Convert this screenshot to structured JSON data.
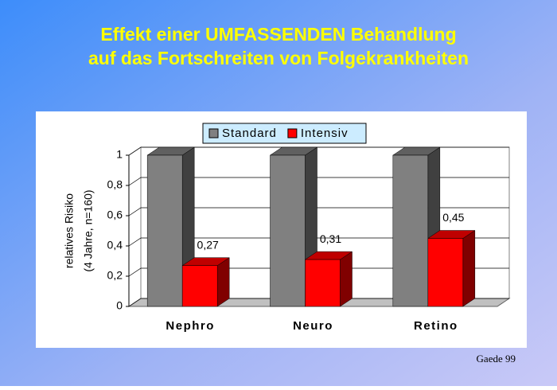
{
  "title_lines": [
    "Effekt einer UMFASSENDEN Behandlung",
    "auf das Fortschreiten von Folgekrankheiten"
  ],
  "footer": "Gaede 99",
  "chart_data": {
    "type": "bar3d",
    "y_label_lines": [
      "relatives Risiko",
      "(4 Jahre, n=160)"
    ],
    "categories": [
      "Nephro",
      "Neuro",
      "Retino"
    ],
    "series": [
      {
        "name": "Standard",
        "color": "#808080",
        "values": [
          1,
          1,
          1
        ]
      },
      {
        "name": "Intensiv",
        "color": "#ff0000",
        "values": [
          0.27,
          0.31,
          0.45
        ],
        "value_labels": [
          "0,27",
          "0,31",
          "0,45"
        ]
      }
    ],
    "ylim": [
      0,
      1
    ],
    "yticks": [
      0,
      {
        "value": 0.2,
        "label": "0,2"
      },
      {
        "value": 0.4,
        "label": "0,4"
      },
      {
        "value": 0.6,
        "label": "0,6"
      },
      {
        "value": 0.8,
        "label": "0,8"
      },
      1
    ],
    "grid": true
  }
}
